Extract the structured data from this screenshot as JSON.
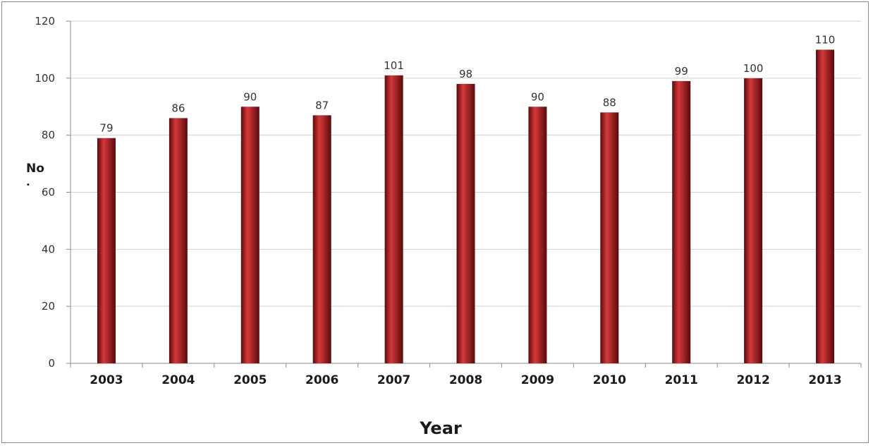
{
  "chart_data": {
    "type": "bar",
    "categories": [
      "2003",
      "2004",
      "2005",
      "2006",
      "2007",
      "2008",
      "2009",
      "2010",
      "2011",
      "2012",
      "2013"
    ],
    "values": [
      79,
      86,
      90,
      87,
      101,
      98,
      90,
      88,
      99,
      100,
      110
    ],
    "data_labels": [
      "79",
      "86",
      "90",
      "87",
      "101",
      "98",
      "90",
      "88",
      "99",
      "100",
      "110"
    ],
    "xlabel": "Year",
    "ylabel": "No",
    "ylabel_mark": ".",
    "ylim": [
      0,
      120
    ],
    "yticks": [
      0,
      20,
      40,
      60,
      80,
      100,
      120
    ],
    "ytick_labels": [
      "0",
      "20",
      "40",
      "60",
      "80",
      "100",
      "120"
    ],
    "grid": true,
    "legend": "none",
    "colors": {
      "bar": "#a31518",
      "bar_highlight": "#d6383a",
      "bar_shadow": "#5a0a0c",
      "grid": "#d0d0d0",
      "axis": "#8a8a8a"
    }
  }
}
